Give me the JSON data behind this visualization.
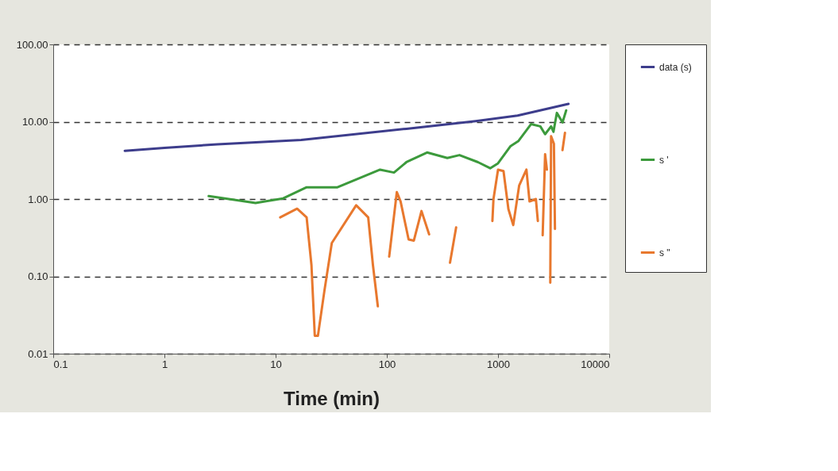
{
  "chart_data": {
    "type": "line",
    "xlabel": "Time (min)",
    "log": "xy",
    "grid": "y",
    "legend": "right",
    "line_style": "solid",
    "marker": "none",
    "xlim": [
      0.1,
      10000
    ],
    "xticks": [
      0.1,
      1,
      10,
      100,
      1000,
      10000
    ],
    "ylim": [
      0.01,
      100
    ],
    "yticks": [
      {
        "value": 0.01,
        "label": "0.01"
      },
      {
        "value": 0.1,
        "label": "0.10"
      },
      {
        "value": 1,
        "label": "1.00"
      },
      {
        "value": 10,
        "label": "10.00"
      },
      {
        "value": 100,
        "label": "100.00"
      }
    ],
    "series": [
      {
        "name": "data (s)",
        "color": "#3d3d8c",
        "x": [
          0.44,
          1,
          3,
          17,
          150,
          630,
          1500,
          4300
        ],
        "values": [
          4.2,
          4.6,
          5.1,
          5.8,
          8.1,
          10.2,
          12,
          17
        ]
      },
      {
        "name": "s '",
        "color": "#3c9a3c",
        "x": [
          2.5,
          6.6,
          11.7,
          19,
          36,
          87,
          116,
          150,
          230,
          350,
          450,
          660,
          850,
          1000,
          1290,
          1520,
          1980,
          2400,
          2650,
          3000,
          3150,
          3380,
          3800,
          4100
        ],
        "values": [
          1.09,
          0.89,
          1.02,
          1.42,
          1.42,
          2.4,
          2.2,
          3.0,
          4.0,
          3.4,
          3.7,
          3.0,
          2.5,
          2.9,
          4.8,
          5.6,
          9.3,
          8.7,
          6.9,
          8.7,
          7.4,
          13,
          9.8,
          14
        ]
      },
      {
        "name": "s \"",
        "color": "#e8782e",
        "x": [
          11,
          15.6,
          19,
          21,
          22.5,
          24,
          27.5,
          32,
          53,
          68,
          75,
          83,
          94,
          105,
          123,
          133,
          157,
          175,
          205,
          240,
          300,
          370,
          420,
          600,
          890,
          910,
          1000,
          1120,
          1240,
          1370,
          1550,
          1800,
          1920,
          2190,
          2280,
          2400,
          2520,
          2650,
          2750,
          2850,
          2950,
          3000,
          3180,
          3250,
          3500,
          3800,
          4000
        ],
        "values": [
          0.58,
          0.75,
          0.58,
          0.14,
          0.017,
          0.017,
          0.066,
          0.27,
          0.83,
          0.58,
          0.14,
          0.041,
          null,
          0.18,
          1.23,
          0.93,
          0.3,
          0.29,
          0.7,
          0.35,
          null,
          0.15,
          0.43,
          null,
          0.52,
          1.0,
          2.4,
          2.3,
          0.74,
          0.46,
          1.5,
          2.4,
          0.93,
          1.0,
          0.52,
          null,
          0.34,
          3.8,
          2.4,
          null,
          0.083,
          6.5,
          5.2,
          0.41,
          null,
          4.3,
          7.2
        ]
      }
    ]
  }
}
